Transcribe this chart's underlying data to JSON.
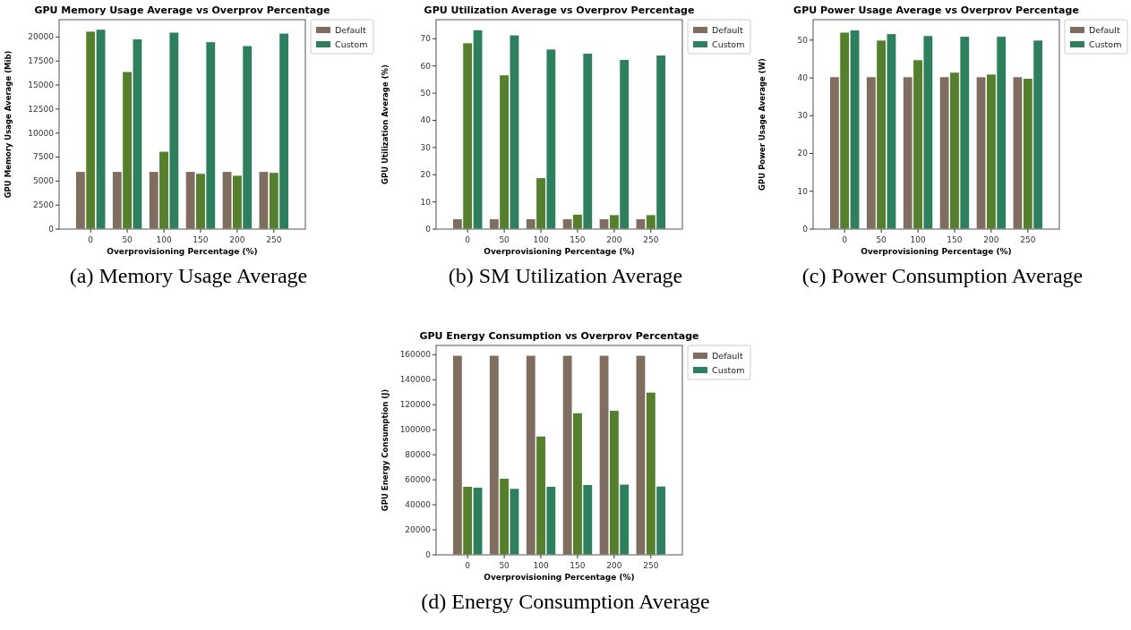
{
  "chart_data": [
    {
      "type": "bar",
      "title": "GPU Memory Usage Average vs Overprov Percentage",
      "xlabel": "Overprovisioning Percentage (%)",
      "ylabel": "GPU Memory Usage Average (Mib)",
      "categories": [
        "0",
        "50",
        "100",
        "150",
        "200",
        "250"
      ],
      "series": [
        {
          "name": "Default",
          "color": "#7f6d5f",
          "values": [
            6000,
            6000,
            6000,
            6000,
            6000,
            6000
          ]
        },
        {
          "color": "#557f2d",
          "values": [
            20600,
            16400,
            8100,
            5800,
            5600,
            5900
          ]
        },
        {
          "name": "Custom",
          "color": "#2d7f5e",
          "values": [
            20800,
            19800,
            20500,
            19500,
            19100,
            20400
          ]
        }
      ],
      "ylim": [
        0,
        21800
      ],
      "yticks": [
        0,
        2500,
        5000,
        7500,
        10000,
        12500,
        15000,
        17500,
        20000
      ],
      "legend": "top right",
      "annotations": [
        "(a) Memory Usage Average"
      ]
    },
    {
      "type": "bar",
      "title": "GPU Utilization Average vs Overprov Percentage",
      "xlabel": "Overprovisioning Percentage (%)",
      "ylabel": "GPU Utilization Average (%)",
      "categories": [
        "0",
        "50",
        "100",
        "150",
        "200",
        "250"
      ],
      "series": [
        {
          "name": "Default",
          "color": "#7f6d5f",
          "values": [
            3.8,
            3.8,
            3.8,
            3.8,
            3.8,
            3.8
          ]
        },
        {
          "color": "#557f2d",
          "values": [
            68.5,
            56.7,
            18.9,
            5.5,
            5.3,
            5.3
          ]
        },
        {
          "name": "Custom",
          "color": "#2d7f5e",
          "values": [
            73.3,
            71.4,
            66.2,
            64.7,
            62.4,
            64
          ]
        }
      ],
      "ylim": [
        0,
        77
      ],
      "yticks": [
        0,
        10,
        20,
        30,
        40,
        50,
        60,
        70
      ],
      "legend": "top right",
      "annotations": [
        "(b) SM Utilization Average"
      ]
    },
    {
      "type": "bar",
      "title": "GPU Power Usage Average vs Overprov Percentage",
      "xlabel": "Overprovisioning Percentage (%)",
      "ylabel": "GPU Power Usage Average (W)",
      "categories": [
        "0",
        "50",
        "100",
        "150",
        "200",
        "250"
      ],
      "series": [
        {
          "name": "Default",
          "color": "#7f6d5f",
          "values": [
            40.3,
            40.3,
            40.3,
            40.3,
            40.3,
            40.3
          ]
        },
        {
          "color": "#557f2d",
          "values": [
            52.1,
            50.0,
            44.8,
            41.5,
            41.0,
            39.9
          ]
        },
        {
          "name": "Custom",
          "color": "#2d7f5e",
          "values": [
            52.7,
            51.7,
            51.2,
            51.0,
            51.0,
            50
          ]
        }
      ],
      "ylim": [
        0,
        55.4
      ],
      "yticks": [
        0,
        10,
        20,
        30,
        40,
        50
      ],
      "legend": "top right",
      "annotations": [
        "(c) Power Consumption Average"
      ]
    },
    {
      "type": "bar",
      "title": "GPU Energy Consumption vs Overprov Percentage",
      "xlabel": "Overprovisioning Percentage (%)",
      "ylabel": "GPU Energy Consumption (J)",
      "categories": [
        "0",
        "50",
        "100",
        "150",
        "200",
        "250"
      ],
      "series": [
        {
          "name": "Default",
          "color": "#7f6d5f",
          "values": [
            159500,
            159500,
            159500,
            159500,
            159500,
            159500
          ]
        },
        {
          "color": "#557f2d",
          "values": [
            54800,
            61200,
            95000,
            113600,
            115500,
            130100
          ]
        },
        {
          "name": "Custom",
          "color": "#2d7f5e",
          "values": [
            54100,
            53100,
            54800,
            56200,
            56500,
            55000
          ]
        }
      ],
      "ylim": [
        0,
        167400
      ],
      "yticks": [
        0,
        20000,
        40000,
        60000,
        80000,
        100000,
        120000,
        140000,
        160000
      ],
      "legend": "top right",
      "annotations": [
        "(d) Energy Consumption Average"
      ]
    }
  ]
}
